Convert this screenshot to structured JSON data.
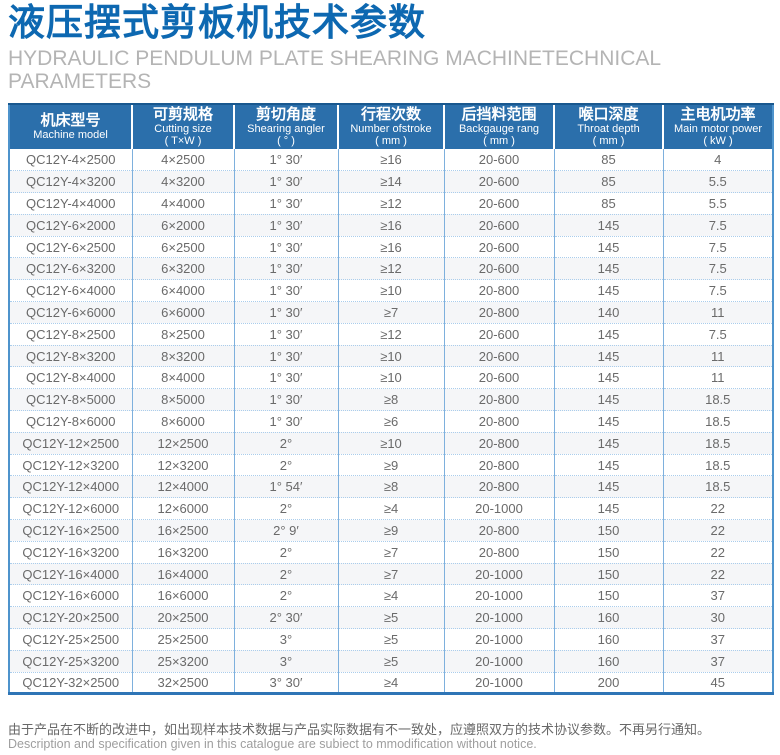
{
  "header": {
    "title_cn": "液压摆式剪板机技术参数",
    "title_en": "HYDRAULIC PENDULUM PLATE SHEARING MACHINETECHNICAL PARAMETERS"
  },
  "colors": {
    "title_blue": "#0d68b1",
    "subtitle_gray": "#b4b4b4",
    "header_bg": "#2b6fab",
    "outer_border": "#4e93cc",
    "bottom_border": "#2e75b6",
    "col_sep": "#7eb0dd",
    "row_dotted": "#aacdec",
    "row_alt": "#f5f6f8",
    "cell_text": "#6a6a6a"
  },
  "table": {
    "columns": [
      {
        "key": "machine-model",
        "cn": "机床型号",
        "en": "Machine model",
        "unit": ""
      },
      {
        "key": "cutting-size",
        "cn": "可剪规格",
        "en": "Cutting size",
        "unit": "( T×W )"
      },
      {
        "key": "shearing-angle",
        "cn": "剪切角度",
        "en": "Shearing angler",
        "unit": "( ° )"
      },
      {
        "key": "stroke-number",
        "cn": "行程次数",
        "en": "Number ofstroke",
        "unit": "( mm )"
      },
      {
        "key": "backgauge-range",
        "cn": "后挡料范围",
        "en": "Backgauge rang",
        "unit": "( mm )"
      },
      {
        "key": "throat-depth",
        "cn": "喉口深度",
        "en": "Throat depth",
        "unit": "( mm )"
      },
      {
        "key": "motor-power",
        "cn": "主电机功率",
        "en": "Main motor power",
        "unit": "( kW )"
      }
    ],
    "rows": [
      [
        "QC12Y-4×2500",
        "4×2500",
        "1° 30′",
        "≥16",
        "20-600",
        "85",
        "4"
      ],
      [
        "QC12Y-4×3200",
        "4×3200",
        "1° 30′",
        "≥14",
        "20-600",
        "85",
        "5.5"
      ],
      [
        "QC12Y-4×4000",
        "4×4000",
        "1° 30′",
        "≥12",
        "20-600",
        "85",
        "5.5"
      ],
      [
        "QC12Y-6×2000",
        "6×2000",
        "1° 30′",
        "≥16",
        "20-600",
        "145",
        "7.5"
      ],
      [
        "QC12Y-6×2500",
        "6×2500",
        "1° 30′",
        "≥16",
        "20-600",
        "145",
        "7.5"
      ],
      [
        "QC12Y-6×3200",
        "6×3200",
        "1° 30′",
        "≥12",
        "20-600",
        "145",
        "7.5"
      ],
      [
        "QC12Y-6×4000",
        "6×4000",
        "1° 30′",
        "≥10",
        "20-800",
        "145",
        "7.5"
      ],
      [
        "QC12Y-6×6000",
        "6×6000",
        "1° 30′",
        "≥7",
        "20-800",
        "140",
        "11"
      ],
      [
        "QC12Y-8×2500",
        "8×2500",
        "1° 30′",
        "≥12",
        "20-600",
        "145",
        "7.5"
      ],
      [
        "QC12Y-8×3200",
        "8×3200",
        "1° 30′",
        "≥10",
        "20-600",
        "145",
        "11"
      ],
      [
        "QC12Y-8×4000",
        "8×4000",
        "1° 30′",
        "≥10",
        "20-600",
        "145",
        "11"
      ],
      [
        "QC12Y-8×5000",
        "8×5000",
        "1° 30′",
        "≥8",
        "20-800",
        "145",
        "18.5"
      ],
      [
        "QC12Y-8×6000",
        "8×6000",
        "1° 30′",
        "≥6",
        "20-800",
        "145",
        "18.5"
      ],
      [
        "QC12Y-12×2500",
        "12×2500",
        "2°",
        "≥10",
        "20-800",
        "145",
        "18.5"
      ],
      [
        "QC12Y-12×3200",
        "12×3200",
        "2°",
        "≥9",
        "20-800",
        "145",
        "18.5"
      ],
      [
        "QC12Y-12×4000",
        "12×4000",
        "1° 54′",
        "≥8",
        "20-800",
        "145",
        "18.5"
      ],
      [
        "QC12Y-12×6000",
        "12×6000",
        "2°",
        "≥4",
        "20-1000",
        "145",
        "22"
      ],
      [
        "QC12Y-16×2500",
        "16×2500",
        "2° 9′",
        "≥9",
        "20-800",
        "150",
        "22"
      ],
      [
        "QC12Y-16×3200",
        "16×3200",
        "2°",
        "≥7",
        "20-800",
        "150",
        "22"
      ],
      [
        "QC12Y-16×4000",
        "16×4000",
        "2°",
        "≥7",
        "20-1000",
        "150",
        "22"
      ],
      [
        "QC12Y-16×6000",
        "16×6000",
        "2°",
        "≥4",
        "20-1000",
        "150",
        "37"
      ],
      [
        "QC12Y-20×2500",
        "20×2500",
        "2° 30′",
        "≥5",
        "20-1000",
        "160",
        "30"
      ],
      [
        "QC12Y-25×2500",
        "25×2500",
        "3°",
        "≥5",
        "20-1000",
        "160",
        "37"
      ],
      [
        "QC12Y-25×3200",
        "25×3200",
        "3°",
        "≥5",
        "20-1000",
        "160",
        "37"
      ],
      [
        "QC12Y-32×2500",
        "32×2500",
        "3° 30′",
        "≥4",
        "20-1000",
        "200",
        "45"
      ]
    ]
  },
  "footer": {
    "note_cn": "由于产品在不断的改进中，如出现样本技术数据与产品实际数据有不一致处，应遵照双方的技术协议参数。不再另行通知。",
    "note_en": "Description and specification given in this catalogue are subiect to mmodification without notice."
  }
}
